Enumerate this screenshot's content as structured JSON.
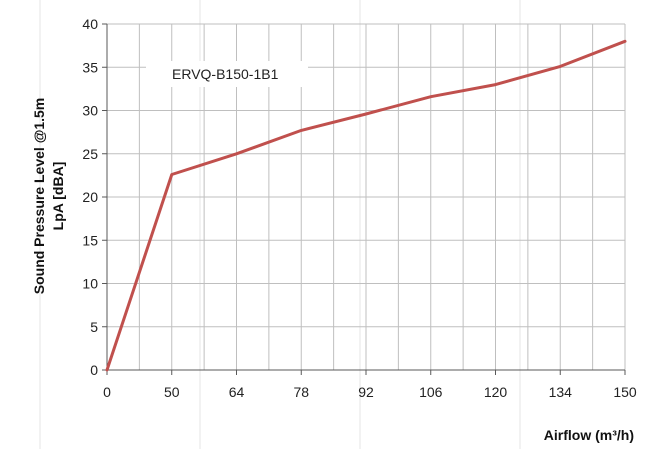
{
  "chart_data": {
    "type": "line",
    "title": "",
    "annotation": "ERVQ-B150-1B1",
    "xlabel": "Airflow (m³/h)",
    "ylabel_line1": "Sound Pressure Level @1.5m",
    "ylabel_line2": "LpA [dBA]",
    "x_ticks": [
      "0",
      "50",
      "64",
      "78",
      "92",
      "106",
      "120",
      "134",
      "150"
    ],
    "y_ticks": [
      0,
      5,
      10,
      15,
      20,
      25,
      30,
      35,
      40
    ],
    "ylim": [
      0,
      40
    ],
    "grid": true,
    "series": [
      {
        "color": "#c0504d",
        "x": [
          0,
          50,
          64,
          78,
          92,
          106,
          120,
          134,
          150
        ],
        "y": [
          0,
          22.6,
          25,
          27.7,
          29.6,
          31.6,
          33,
          35.1,
          38
        ]
      }
    ]
  }
}
